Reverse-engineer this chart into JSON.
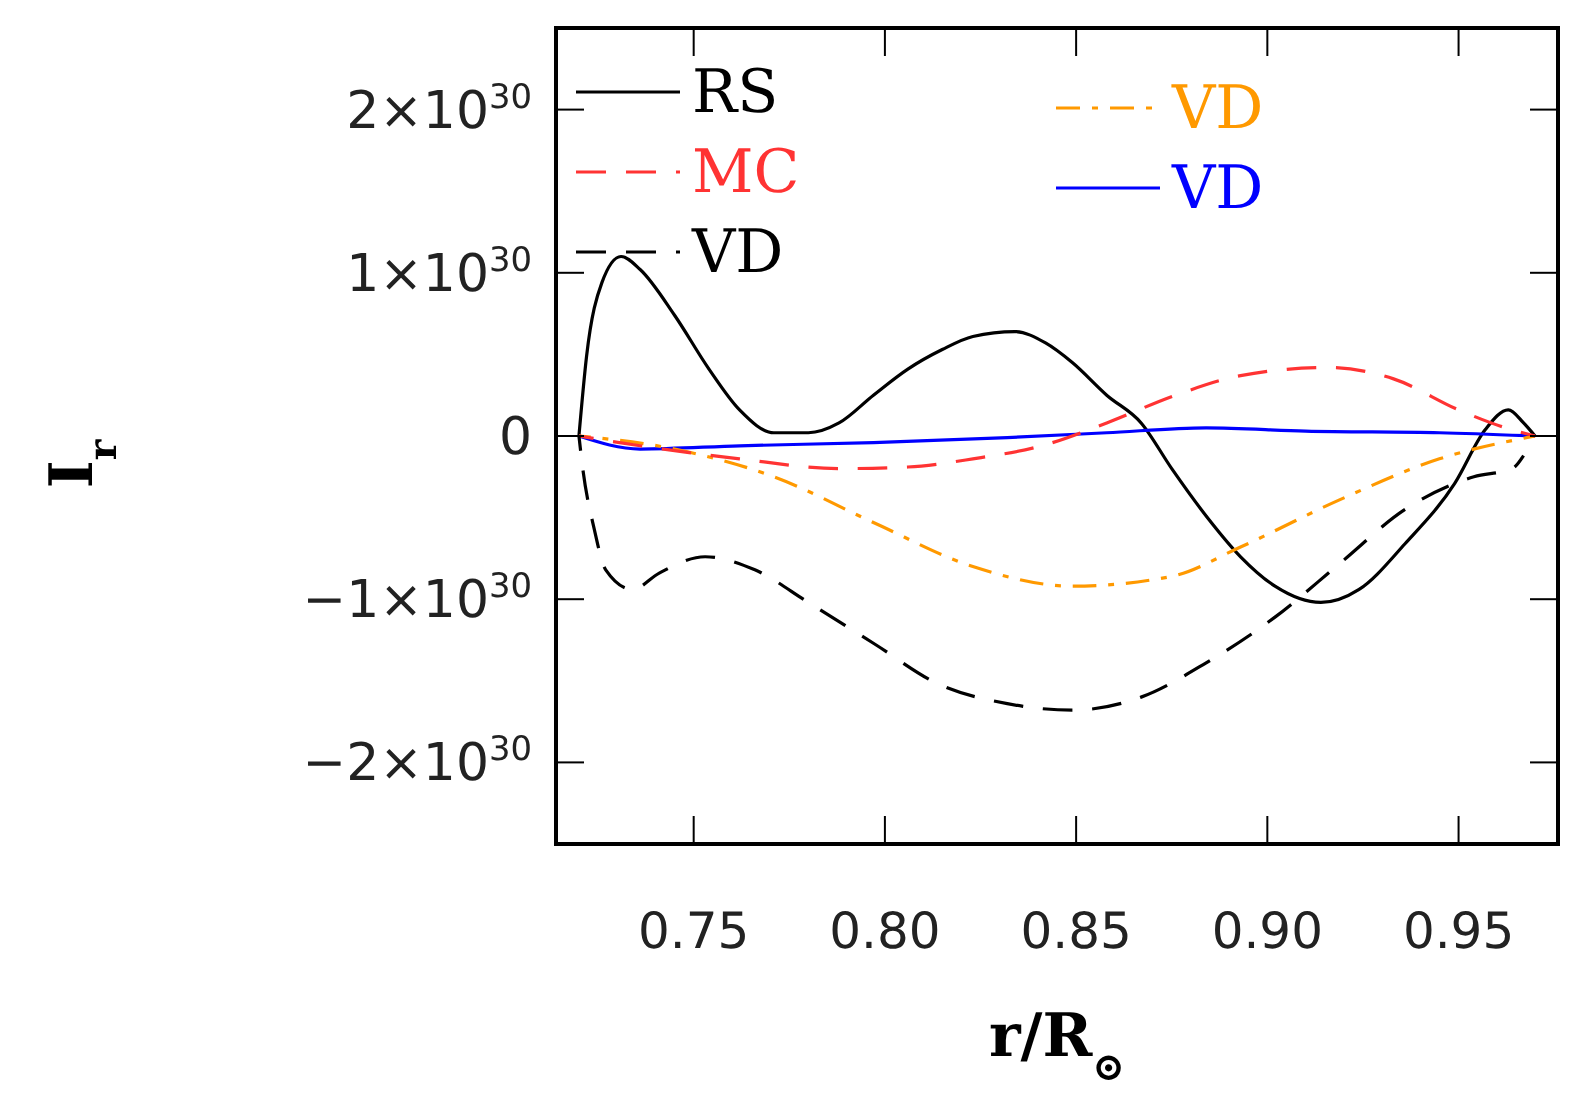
{
  "chart_data": {
    "type": "line",
    "xlabel": "r/R$_{⊙}$",
    "ylabel": "I$_{r}$",
    "xlim": [
      0.714,
      0.976
    ],
    "ylim": [
      -2.5e+30,
      2.5e+30
    ],
    "xticks": [
      {
        "value": 0.75,
        "label": "0.75"
      },
      {
        "value": 0.8,
        "label": "0.80"
      },
      {
        "value": 0.85,
        "label": "0.85"
      },
      {
        "value": 0.9,
        "label": "0.90"
      },
      {
        "value": 0.95,
        "label": "0.95"
      }
    ],
    "yticks": [
      {
        "value": -2e+30,
        "label": "−2×10$^{30}$"
      },
      {
        "value": -1e+30,
        "label": "−1×10$^{30}$"
      },
      {
        "value": 0,
        "label": "0"
      },
      {
        "value": 1e+30,
        "label": "1×10$^{30}$"
      },
      {
        "value": 2e+30,
        "label": "2×10$^{30}$"
      }
    ],
    "grid": false,
    "legend": "top",
    "marker": "none",
    "series": [
      {
        "name": "RS",
        "color": "#000000",
        "line_style": "solid",
        "x": [
          0.72,
          0.722,
          0.726,
          0.731,
          0.736,
          0.745,
          0.754,
          0.762,
          0.771,
          0.78,
          0.788,
          0.797,
          0.806,
          0.815,
          0.823,
          0.834,
          0.842,
          0.849,
          0.858,
          0.867,
          0.875,
          0.884,
          0.893,
          0.902,
          0.914,
          0.924,
          0.936,
          0.949,
          0.957,
          0.963,
          0.967,
          0.97
        ],
        "values": [
          0,
          4.9e+29,
          9.4e+29,
          1.1e+30,
          1.02e+30,
          7.4e+29,
          4.1e+29,
          1.6e+29,
          2e+28,
          2e+28,
          8e+28,
          2.5e+29,
          4.1e+29,
          5.3e+29,
          6.1e+29,
          6.4e+29,
          5.7e+29,
          4.5e+29,
          2.5e+29,
          8e+28,
          -2e+29,
          -4.9e+29,
          -7.4e+29,
          -9.2e+29,
          -1.02e+30,
          -9.4e+29,
          -6.6e+29,
          -2.9e+29,
          4e+28,
          1.6e+29,
          8e+28,
          0
        ]
      },
      {
        "name": "MC",
        "color": "#ff3333",
        "line_style": "dashed",
        "x": [
          0.72,
          0.736,
          0.762,
          0.788,
          0.806,
          0.823,
          0.841,
          0.858,
          0.876,
          0.893,
          0.916,
          0.933,
          0.95,
          0.961,
          0.97
        ],
        "values": [
          0,
          -6e+28,
          -1.4e+29,
          -2e+29,
          -1.9e+29,
          -1.4e+29,
          -6e+28,
          8e+28,
          2.5e+29,
          3.7e+29,
          4.2e+29,
          3.5e+29,
          1.6e+29,
          6e+28,
          0
        ]
      },
      {
        "name": "VD",
        "color": "#000000",
        "line_style": "dashed",
        "x": [
          0.72,
          0.721,
          0.724,
          0.727,
          0.734,
          0.741,
          0.753,
          0.766,
          0.78,
          0.797,
          0.814,
          0.832,
          0.849,
          0.867,
          0.884,
          0.902,
          0.919,
          0.936,
          0.954,
          0.964,
          0.967
        ],
        "values": [
          0,
          -2e+29,
          -5.7e+29,
          -8.2e+29,
          -9.4e+29,
          -8.4e+29,
          -7.4e+29,
          -8.2e+29,
          -1.02e+30,
          -1.27e+30,
          -1.52e+30,
          -1.64e+30,
          -1.68e+30,
          -1.6e+30,
          -1.39e+30,
          -1.11e+30,
          -7.8e+29,
          -4.5e+29,
          -2.5e+29,
          -2e+29,
          -1.2e+29
        ]
      },
      {
        "name": "VD",
        "color": "#ff9900",
        "line_style": "dashdot",
        "x": [
          0.72,
          0.745,
          0.771,
          0.797,
          0.823,
          0.849,
          0.875,
          0.893,
          0.919,
          0.945,
          0.97
        ],
        "values": [
          0,
          -8e+28,
          -2.5e+29,
          -5.3e+29,
          -8e+29,
          -9.2e+29,
          -8.6e+29,
          -6.8e+29,
          -3.9e+29,
          -1.4e+29,
          0
        ]
      },
      {
        "name": "VD",
        "color": "#0000ff",
        "line_style": "solid",
        "x": [
          0.72,
          0.736,
          0.762,
          0.797,
          0.832,
          0.858,
          0.884,
          0.91,
          0.945,
          0.97
        ],
        "values": [
          0,
          -8e+28,
          -6e+28,
          -4e+28,
          -1e+28,
          2e+28,
          5e+28,
          3e+28,
          2e+28,
          0
        ]
      }
    ]
  }
}
